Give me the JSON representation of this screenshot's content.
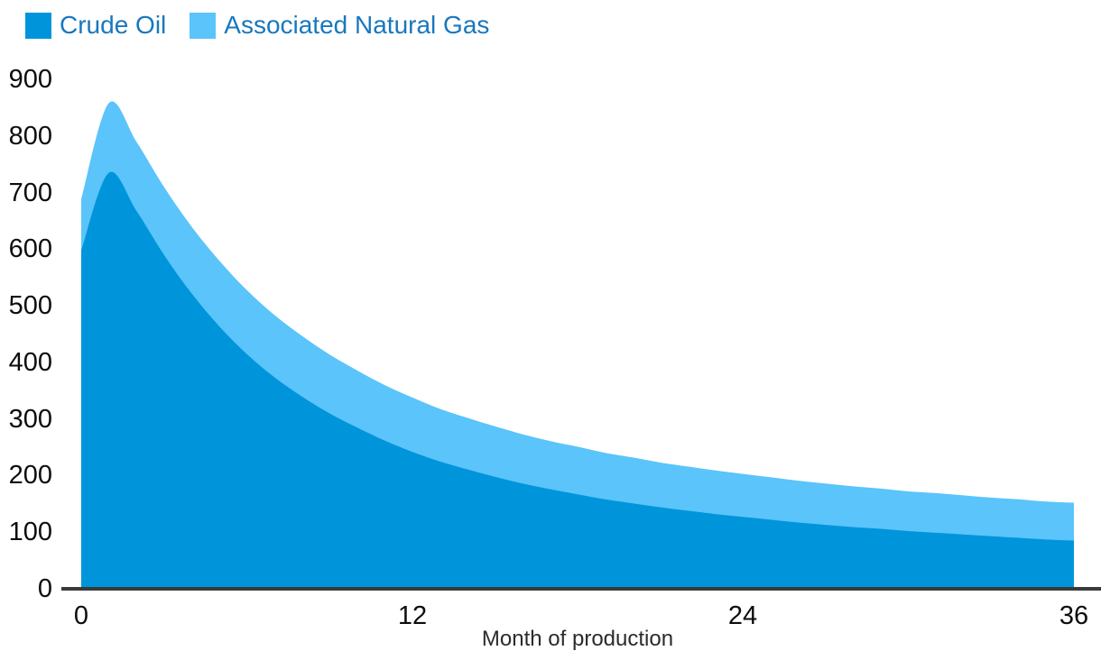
{
  "legend": {
    "items": [
      {
        "label": "Crude Oil",
        "color": "#0095DB"
      },
      {
        "label": "Associated Natural Gas",
        "color": "#5BC4FA"
      }
    ]
  },
  "axes": {
    "x_title": "Month of production",
    "x_ticks": [
      "0",
      "12",
      "24",
      "36"
    ],
    "y_ticks": [
      "0",
      "100",
      "200",
      "300",
      "400",
      "500",
      "600",
      "700",
      "800",
      "900"
    ]
  },
  "chart_data": {
    "type": "area",
    "stacked": true,
    "title": "",
    "xlabel": "Month of production",
    "ylabel": "",
    "xlim": [
      0,
      36
    ],
    "ylim": [
      0,
      900
    ],
    "x_tick_values": [
      0,
      12,
      24,
      36
    ],
    "y_tick_values": [
      0,
      100,
      200,
      300,
      400,
      500,
      600,
      700,
      800,
      900
    ],
    "grid": false,
    "legend_position": "top-left",
    "x": [
      0,
      1,
      2,
      3,
      4,
      5,
      6,
      7,
      8,
      9,
      10,
      11,
      12,
      13,
      14,
      15,
      16,
      17,
      18,
      19,
      20,
      21,
      22,
      23,
      24,
      25,
      26,
      27,
      28,
      29,
      30,
      31,
      32,
      33,
      34,
      35,
      36
    ],
    "series": [
      {
        "name": "Crude Oil",
        "color": "#0095DB",
        "values": [
          598,
          735,
          668,
          590,
          522,
          464,
          415,
          374,
          340,
          310,
          285,
          262,
          242,
          225,
          211,
          198,
          186,
          176,
          167,
          158,
          151,
          144,
          138,
          132,
          127,
          122,
          117,
          113,
          109,
          106,
          102,
          99,
          96,
          93,
          90,
          87,
          85
        ]
      },
      {
        "name": "Associated Natural Gas",
        "color": "#5BC4FA",
        "stacked_on": "Crude Oil",
        "values": [
          90,
          123,
          122,
          120,
          118,
          116,
          113,
          110,
          107,
          104,
          101,
          98,
          96,
          93,
          91,
          89,
          87,
          85,
          84,
          82,
          81,
          79,
          78,
          77,
          76,
          75,
          74,
          73,
          72,
          71,
          70,
          70,
          69,
          68,
          68,
          67,
          67
        ]
      }
    ],
    "annotations": {
      "crude_oil_peak": {
        "x": 1,
        "value": 735
      },
      "total_peak": {
        "x": 1,
        "value": 858
      }
    }
  }
}
